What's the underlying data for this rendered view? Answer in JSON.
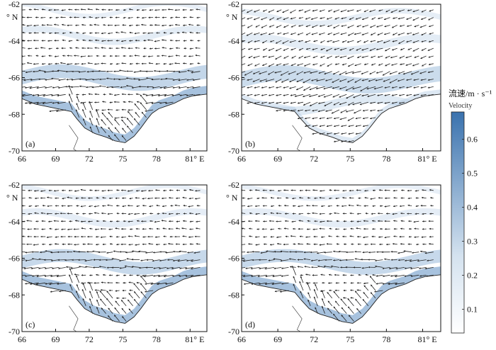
{
  "figure": {
    "panels": [
      {
        "label": "(a)",
        "variant": "a"
      },
      {
        "label": "(b)",
        "variant": "b"
      },
      {
        "label": "(c)",
        "variant": "c"
      },
      {
        "label": "(d)",
        "variant": "d"
      }
    ],
    "colorbar": {
      "title": "流速/m · s⁻¹",
      "subtitle": "Velocity",
      "ticks": [
        "0.6",
        "0.5",
        "0.4",
        "0.3",
        "0.2",
        "0.1"
      ],
      "tick_values": [
        0.6,
        0.5,
        0.4,
        0.3,
        0.2,
        0.1
      ],
      "range": [
        0.03,
        0.68
      ],
      "color_low": "#ffffff",
      "color_high": "#3a72ae"
    }
  },
  "chart_data": {
    "type": "heatmap",
    "xlim": [
      66,
      82.5
    ],
    "ylim": [
      -70,
      -62
    ],
    "x_ticks": [
      "66",
      "69",
      "72",
      "75",
      "78",
      "81° E"
    ],
    "x_tick_values": [
      66,
      69,
      72,
      75,
      78,
      81
    ],
    "y_ticks": [
      "-62",
      "-64",
      "-66",
      "-68",
      "-70"
    ],
    "y_tick_values": [
      -62,
      -64,
      -66,
      -68,
      -70
    ],
    "y_unit_label": "° N"
  }
}
